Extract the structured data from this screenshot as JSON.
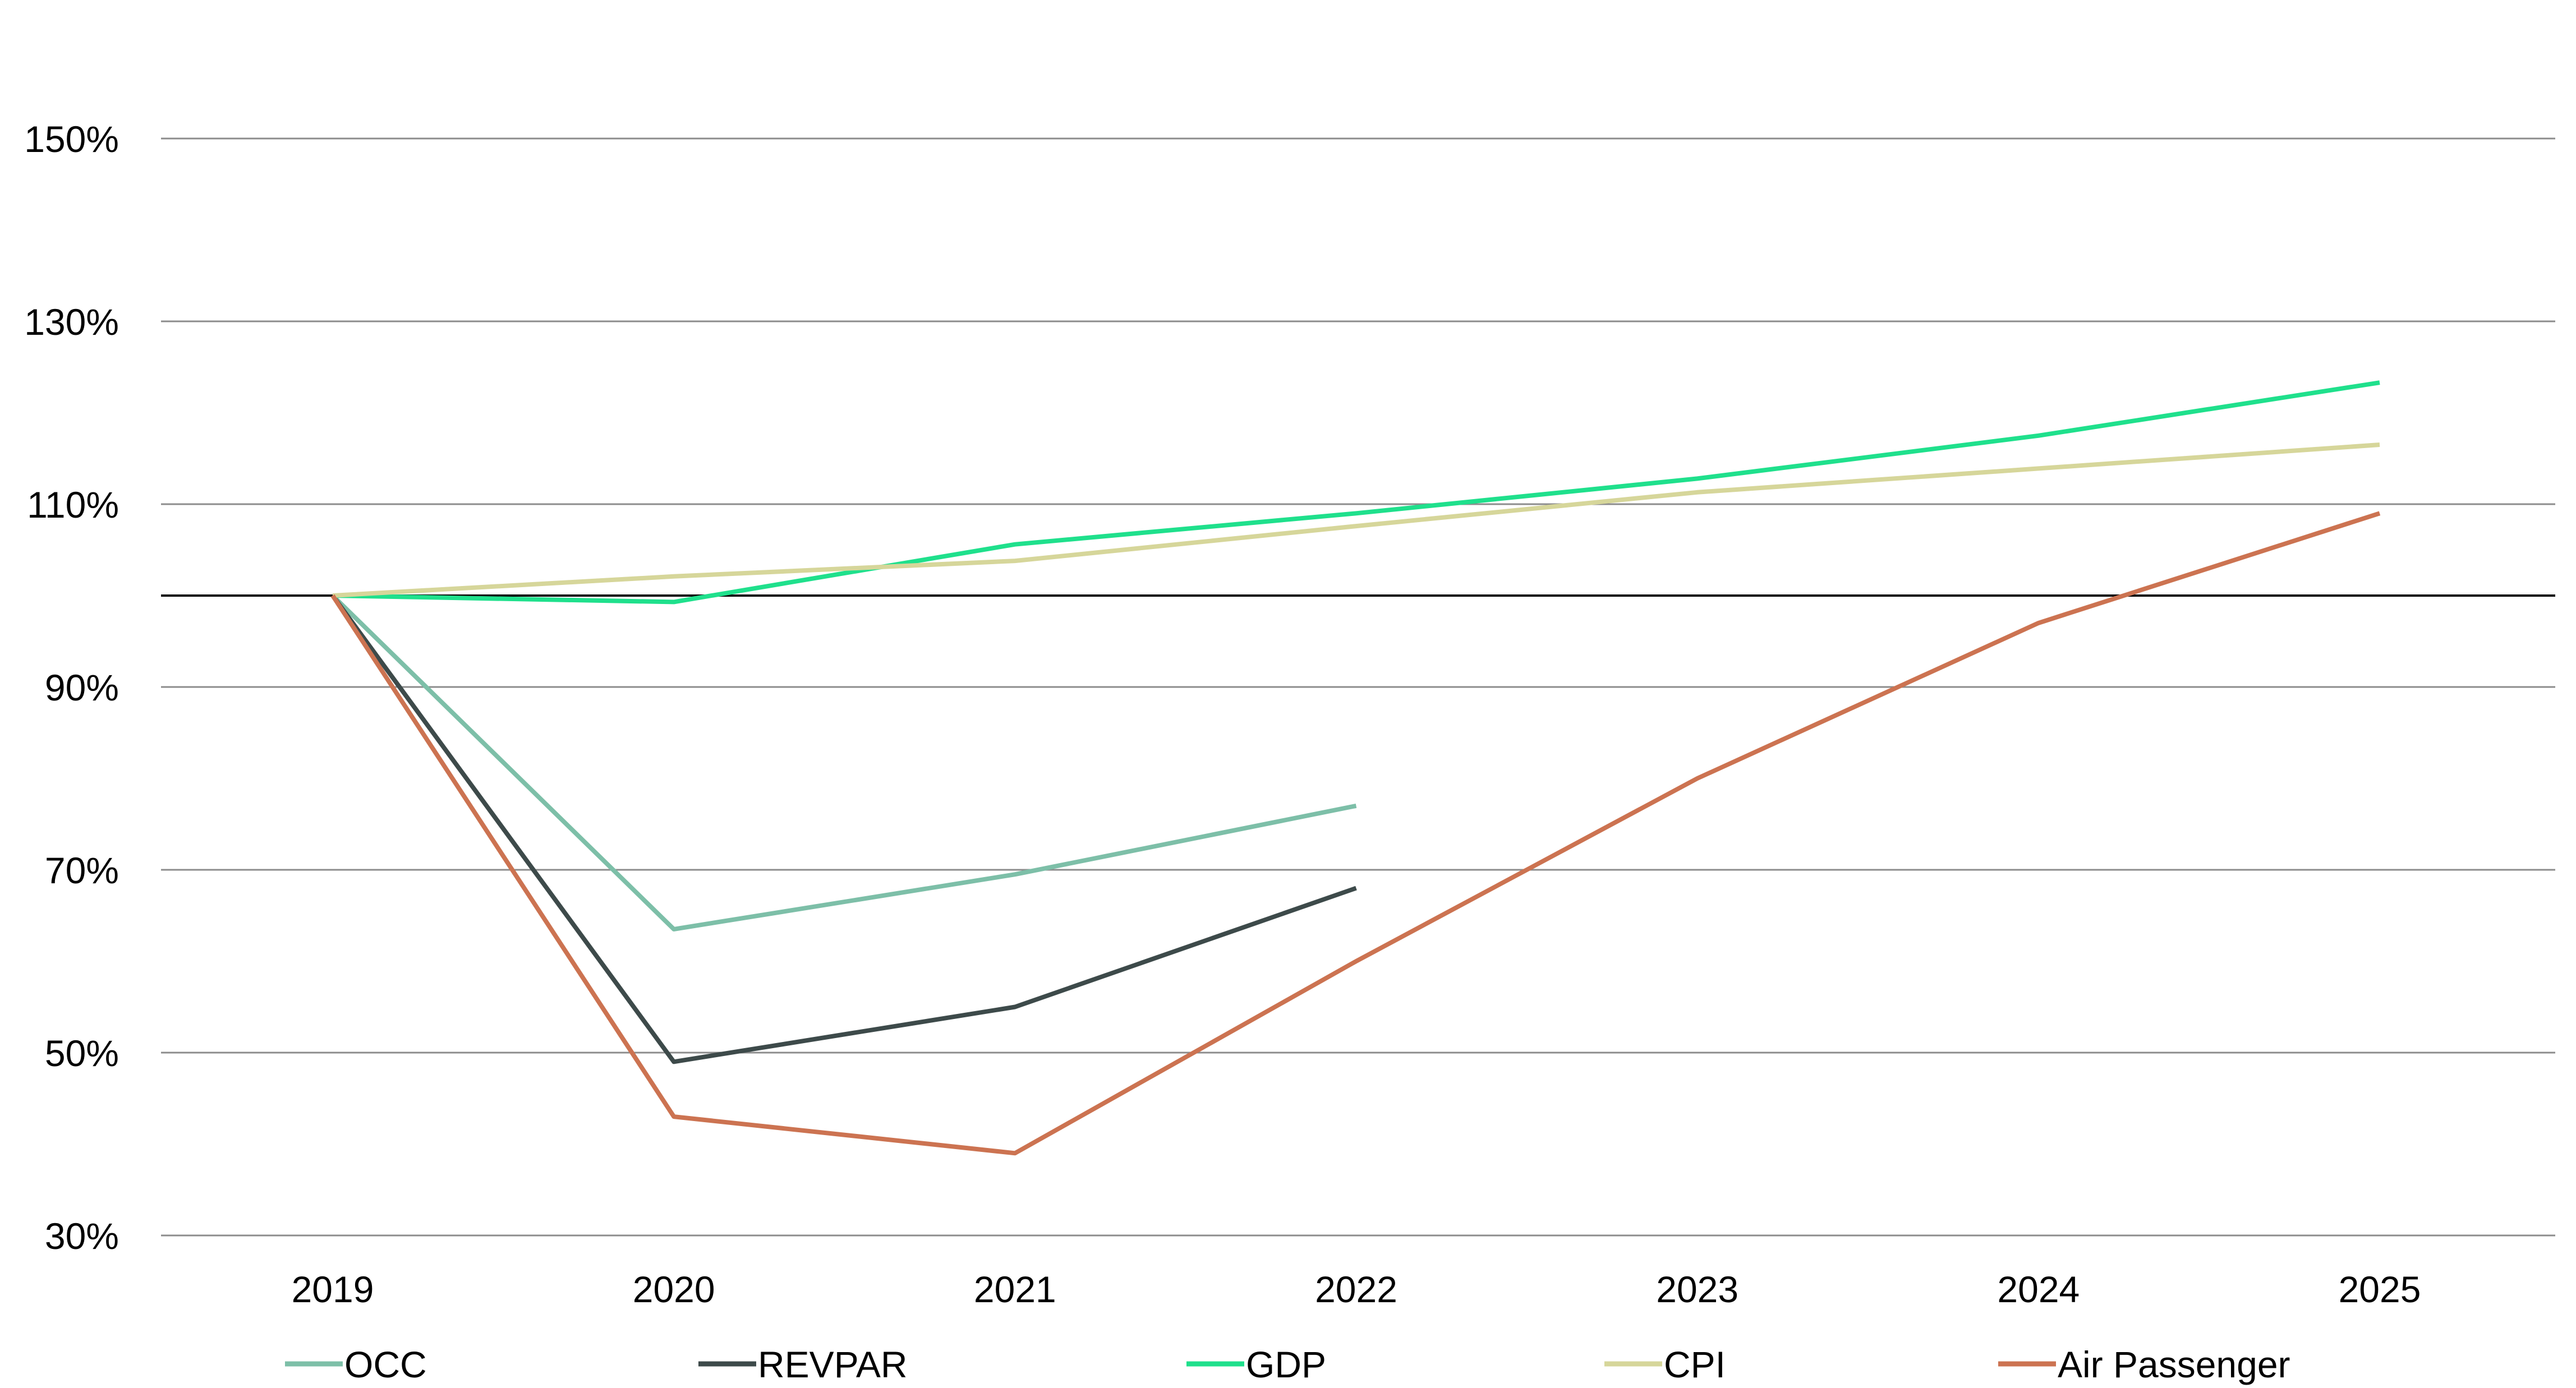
{
  "chart_data": {
    "type": "line",
    "title": "",
    "xlabel": "",
    "ylabel": "",
    "x": [
      "2019",
      "2020",
      "2021",
      "2022",
      "2023",
      "2024",
      "2025"
    ],
    "ylim": [
      30,
      150
    ],
    "yticks": [
      30,
      50,
      70,
      90,
      110,
      130,
      150
    ],
    "ytick_labels": [
      "30%",
      "50%",
      "70%",
      "90%",
      "110%",
      "130%",
      "150%"
    ],
    "reference_line": 100,
    "grid": true,
    "legend_position": "bottom",
    "series": [
      {
        "name": "OCC",
        "color": "#7dbfa8",
        "values": [
          100,
          63.5,
          69.5,
          77,
          null,
          null,
          null
        ]
      },
      {
        "name": "REVPAR",
        "color": "#3d4a4a",
        "values": [
          100,
          49,
          55,
          68,
          null,
          null,
          null
        ]
      },
      {
        "name": "GDP",
        "color": "#1fe08c",
        "values": [
          100,
          99.3,
          105.6,
          109,
          112.8,
          117.5,
          123.3
        ]
      },
      {
        "name": "CPI",
        "color": "#d6d69a",
        "values": [
          100,
          102.1,
          103.8,
          107.6,
          111.3,
          113.9,
          116.5
        ]
      },
      {
        "name": "Air Passenger",
        "color": "#cc7351",
        "values": [
          100,
          43,
          39,
          60,
          80,
          97,
          109
        ]
      }
    ]
  }
}
